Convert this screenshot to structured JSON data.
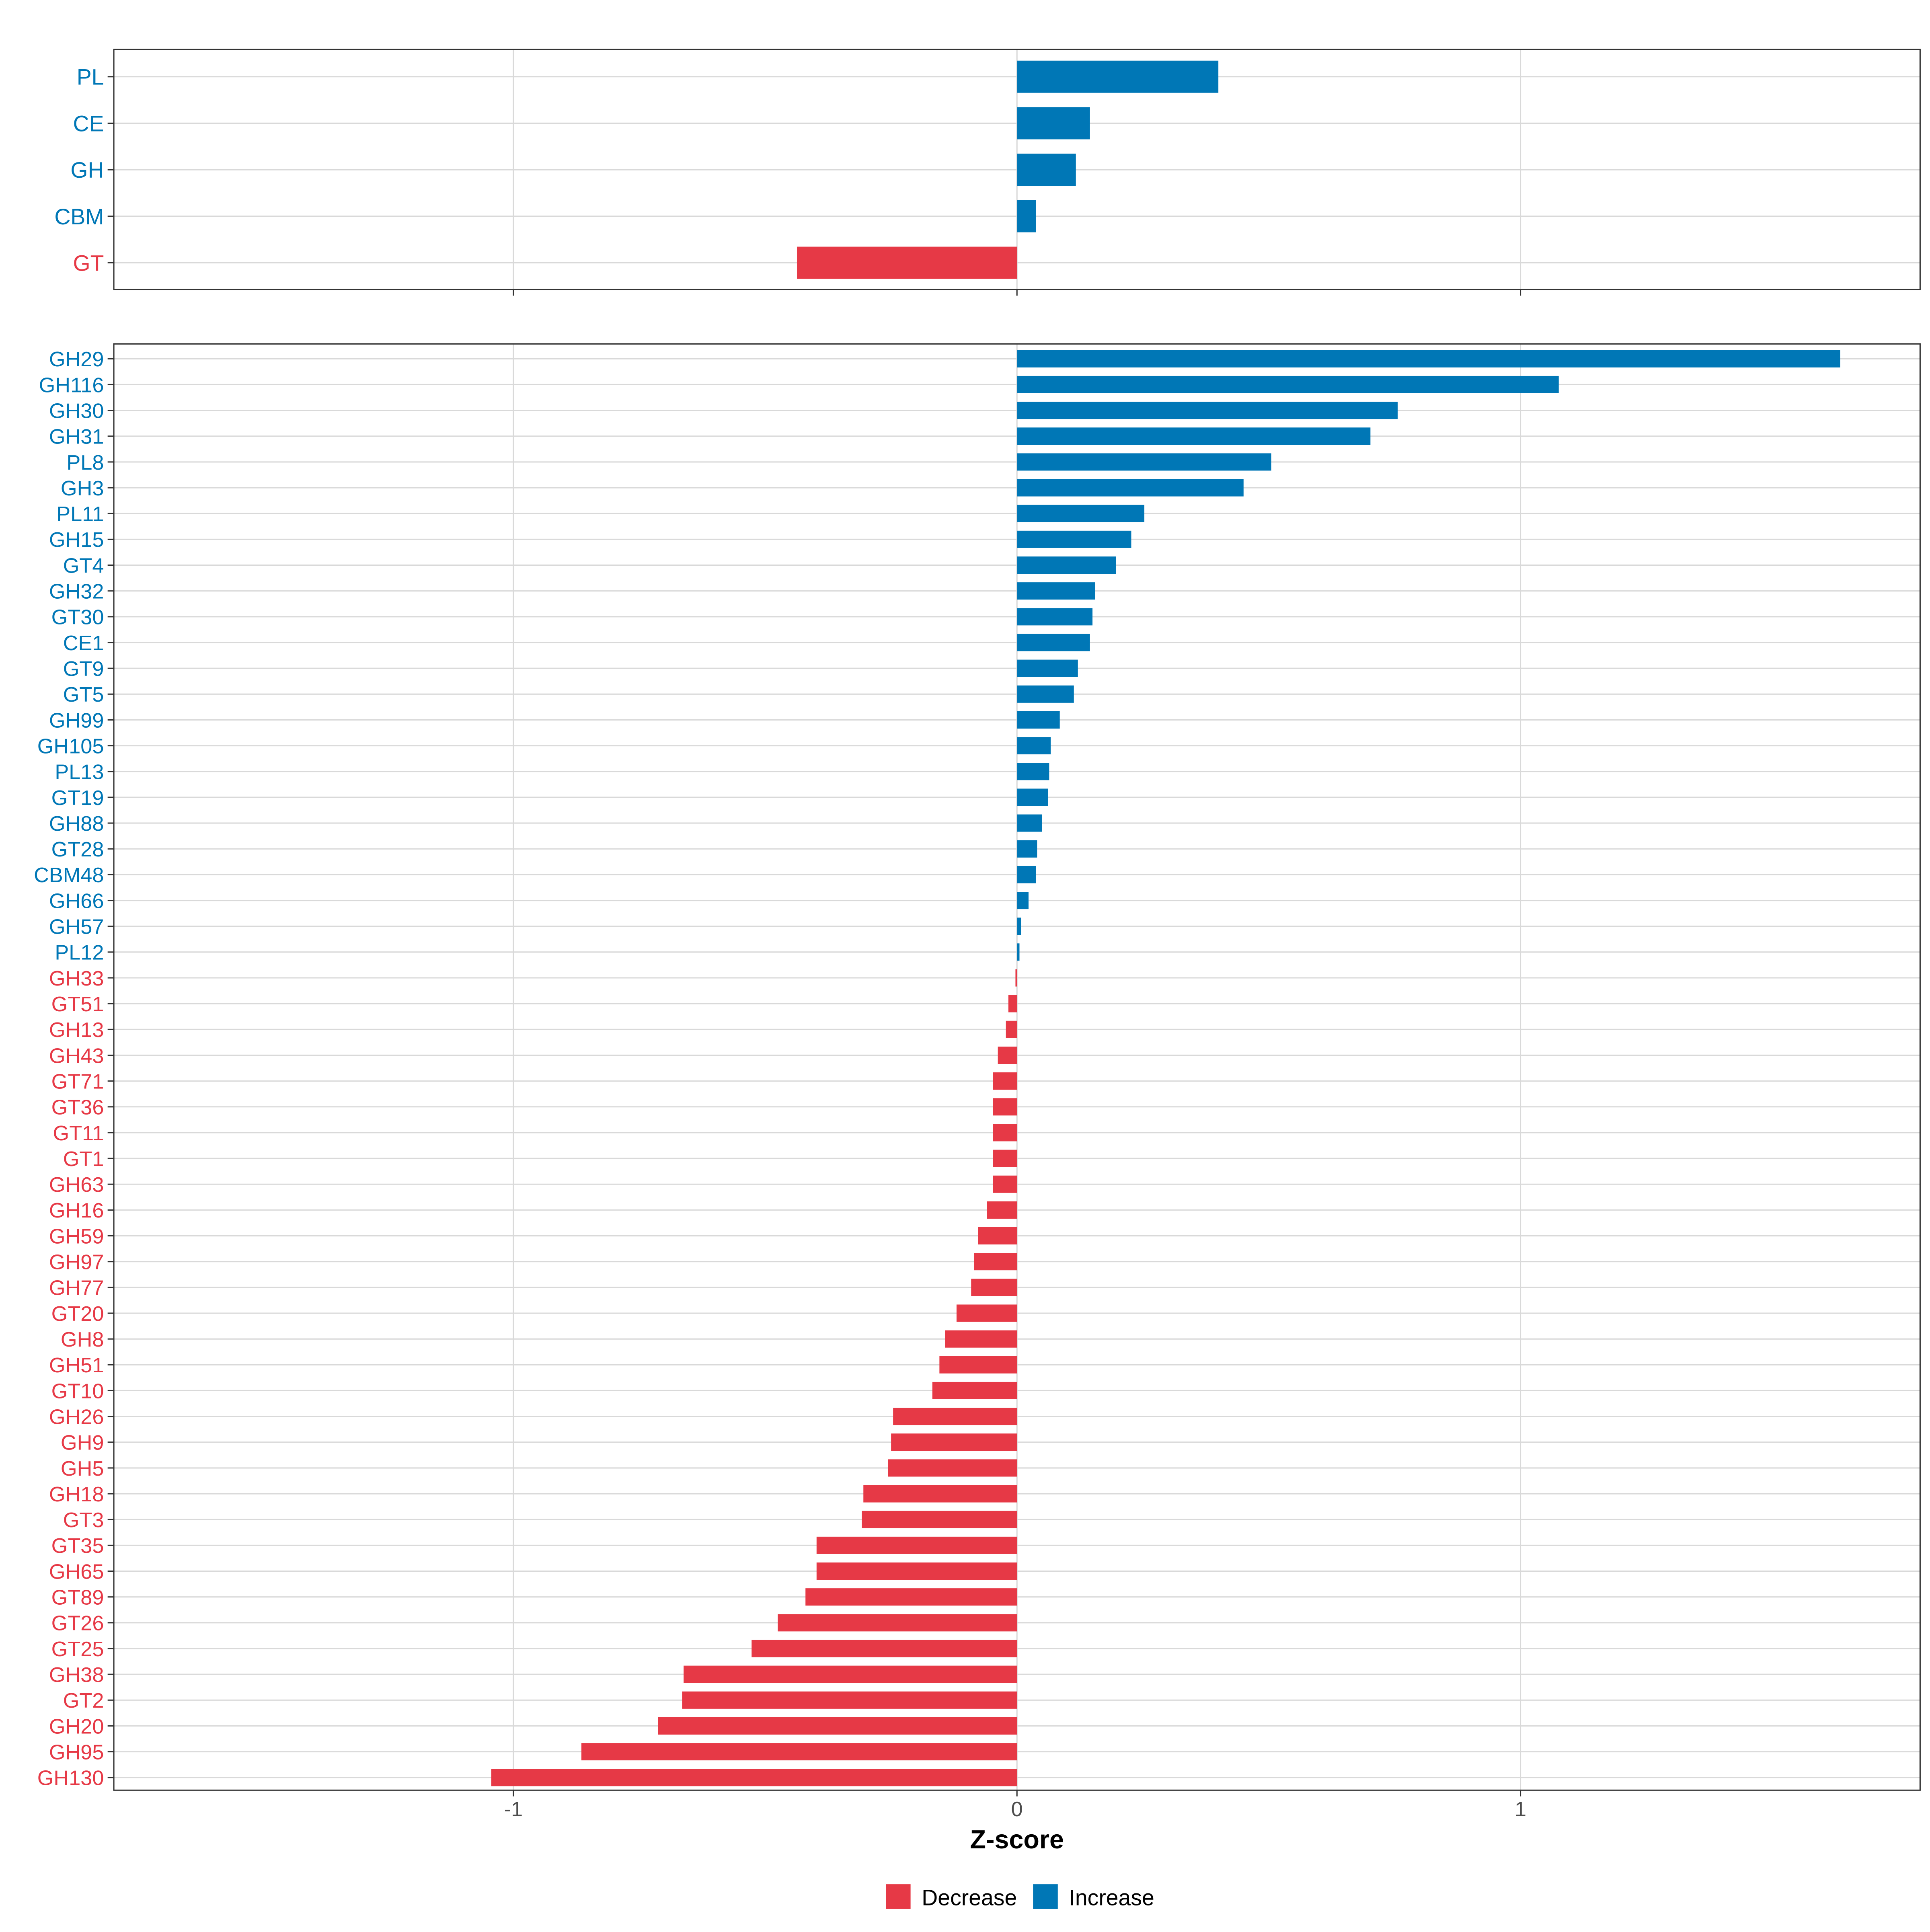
{
  "chart_data": {
    "type": "bar",
    "orientation": "horizontal",
    "xlabel": "Z-score",
    "x_ticks": [
      -1,
      0,
      1
    ],
    "xlim": [
      -1.8,
      1.8
    ],
    "colors": {
      "Decrease": "#E63946",
      "Increase": "#0077B6"
    },
    "legend": {
      "position": "bottom",
      "items": [
        "Decrease",
        "Increase"
      ]
    },
    "panels": [
      {
        "name": "class",
        "categories": [
          "PL",
          "CE",
          "GH",
          "CBM",
          "GT"
        ],
        "values": [
          0.4,
          0.145,
          0.117,
          0.038,
          -0.437
        ]
      },
      {
        "name": "family",
        "categories": [
          "GH29",
          "GH116",
          "GH30",
          "GH31",
          "PL8",
          "GH3",
          "PL11",
          "GH15",
          "GT4",
          "GH32",
          "GT30",
          "CE1",
          "GT9",
          "GT5",
          "GH99",
          "GH105",
          "PL13",
          "GT19",
          "GH88",
          "GT28",
          "CBM48",
          "GH66",
          "GH57",
          "PL12",
          "GH33",
          "GT51",
          "GH13",
          "GH43",
          "GT71",
          "GT36",
          "GT11",
          "GT1",
          "GH63",
          "GH16",
          "GH59",
          "GH97",
          "GH77",
          "GT20",
          "GH8",
          "GH51",
          "GT10",
          "GH26",
          "GH9",
          "GH5",
          "GH18",
          "GT3",
          "GT35",
          "GH65",
          "GT89",
          "GT26",
          "GT25",
          "GH38",
          "GT2",
          "GH20",
          "GH95",
          "GH130"
        ],
        "values": [
          1.635,
          1.076,
          0.756,
          0.702,
          0.505,
          0.45,
          0.253,
          0.227,
          0.197,
          0.155,
          0.15,
          0.145,
          0.121,
          0.113,
          0.085,
          0.067,
          0.064,
          0.062,
          0.05,
          0.04,
          0.038,
          0.023,
          0.008,
          0.005,
          -0.003,
          -0.017,
          -0.022,
          -0.038,
          -0.048,
          -0.048,
          -0.048,
          -0.048,
          -0.048,
          -0.06,
          -0.077,
          -0.085,
          -0.091,
          -0.12,
          -0.143,
          -0.154,
          -0.168,
          -0.246,
          -0.25,
          -0.256,
          -0.305,
          -0.308,
          -0.398,
          -0.398,
          -0.42,
          -0.475,
          -0.527,
          -0.662,
          -0.665,
          -0.713,
          -0.865,
          -1.044
        ]
      }
    ]
  }
}
